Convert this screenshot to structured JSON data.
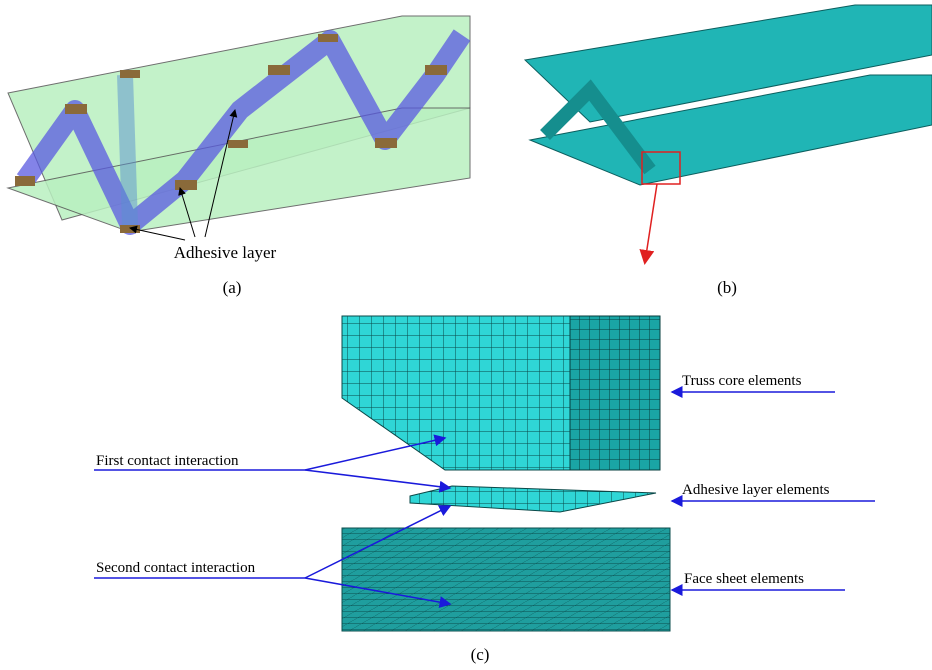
{
  "panel_a": {
    "annotation": "Adhesive layer",
    "caption": "(a)"
  },
  "panel_b": {
    "caption": "(b)"
  },
  "panel_c": {
    "caption": "(c)",
    "labels": {
      "truss": "Truss core elements",
      "first_contact": "First contact interaction",
      "adhesive": "Adhesive layer elements",
      "second_contact": "Second contact interaction",
      "face_sheet": "Face sheet elements"
    }
  }
}
